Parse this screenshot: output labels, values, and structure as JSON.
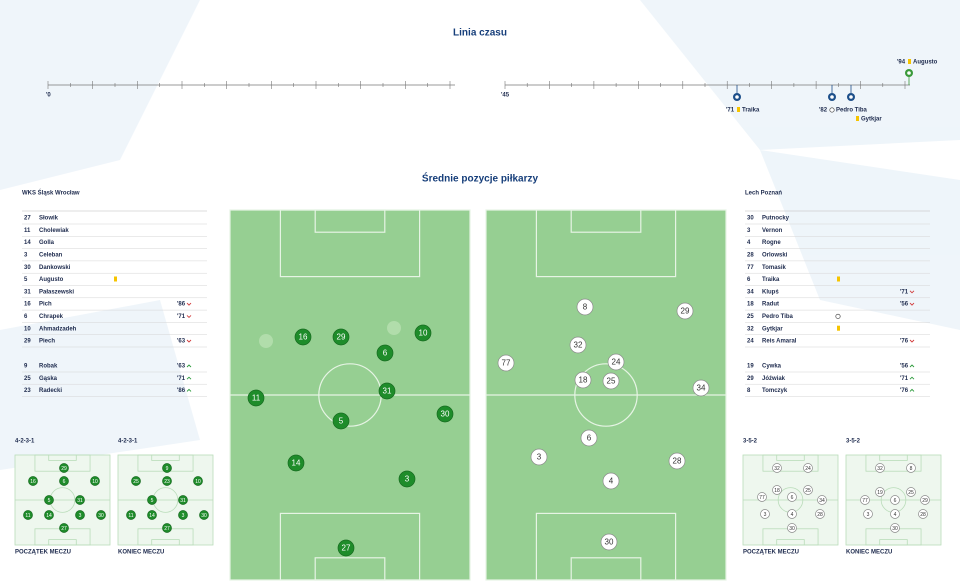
{
  "timeline": {
    "title": "Linia czasu",
    "first_start": "'0",
    "second_start": "'45",
    "events": [
      {
        "minute": "'71",
        "player": "Traika",
        "kind": "card"
      },
      {
        "minute": "'82",
        "player": "Pedro Tiba",
        "kind": "goal"
      },
      {
        "minute": "",
        "player": "Gytkjar",
        "kind": "card"
      },
      {
        "minute": "'94",
        "player": "Augusto",
        "kind": "card"
      }
    ]
  },
  "positions_title": "Średnie pozycje piłkarzy",
  "home": {
    "name": "WKS Śląsk Wrocław",
    "formation_start": "4-2-3-1",
    "formation_end": "4-2-3-1",
    "players": [
      {
        "number": "27",
        "name": "Słowik"
      },
      {
        "number": "11",
        "name": "Cholewiak"
      },
      {
        "number": "14",
        "name": "Golla"
      },
      {
        "number": "3",
        "name": "Celeban"
      },
      {
        "number": "30",
        "name": "Dankowski"
      },
      {
        "number": "5",
        "name": "Augusto",
        "card": "yellow"
      },
      {
        "number": "31",
        "name": "Pałaszewski"
      },
      {
        "number": "16",
        "name": "Pich",
        "minute": "'86",
        "sub": "out"
      },
      {
        "number": "6",
        "name": "Chrapek",
        "minute": "'71",
        "sub": "out"
      },
      {
        "number": "10",
        "name": "Ahmadzadeh"
      },
      {
        "number": "29",
        "name": "Piech",
        "minute": "'63",
        "sub": "out"
      }
    ],
    "subs": [
      {
        "number": "9",
        "name": "Robak",
        "minute": "'63",
        "sub": "in"
      },
      {
        "number": "25",
        "name": "Gąska",
        "minute": "'71",
        "sub": "in"
      },
      {
        "number": "23",
        "name": "Radecki",
        "minute": "'86",
        "sub": "in"
      }
    ]
  },
  "away": {
    "name": "Lech Poznań",
    "formation_start": "3-5-2",
    "formation_end": "3-5-2",
    "players": [
      {
        "number": "30",
        "name": "Putnocky"
      },
      {
        "number": "3",
        "name": "Vernon"
      },
      {
        "number": "4",
        "name": "Rogne"
      },
      {
        "number": "28",
        "name": "Orlowski"
      },
      {
        "number": "77",
        "name": "Tomasik"
      },
      {
        "number": "6",
        "name": "Traika",
        "card": "yellow"
      },
      {
        "number": "34",
        "name": "Klupś",
        "minute": "'71",
        "sub": "out"
      },
      {
        "number": "18",
        "name": "Radut",
        "minute": "'56",
        "sub": "out"
      },
      {
        "number": "25",
        "name": "Pedro Tiba",
        "goal": true
      },
      {
        "number": "32",
        "name": "Gytkjar",
        "card": "yellow"
      },
      {
        "number": "24",
        "name": "Reis Amaral",
        "minute": "'76",
        "sub": "out"
      }
    ],
    "subs": [
      {
        "number": "19",
        "name": "Cywka",
        "minute": "'56",
        "sub": "in"
      },
      {
        "number": "29",
        "name": "Jóźwiak",
        "minute": "'71",
        "sub": "in"
      },
      {
        "number": "8",
        "name": "Tomczyk",
        "minute": "'76",
        "sub": "in"
      }
    ]
  },
  "start_label": "POCZĄTEK MECZU",
  "end_label": "KONIEC MECZU"
}
